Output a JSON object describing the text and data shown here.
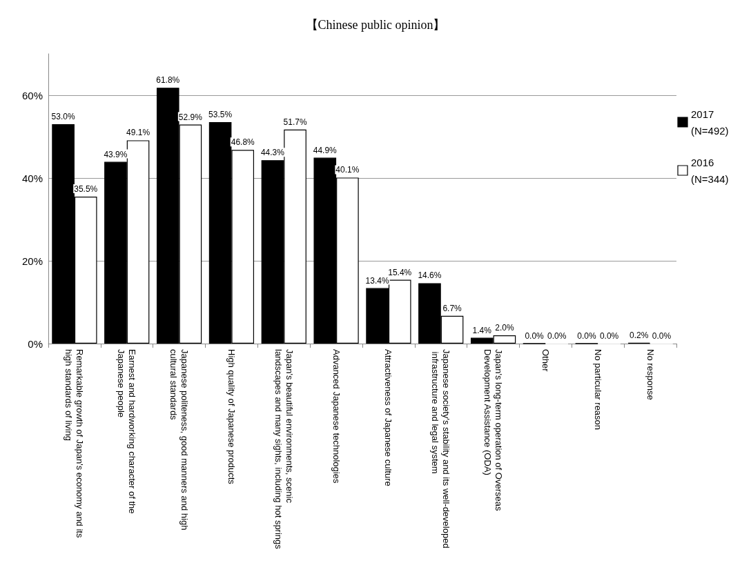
{
  "chart_data": {
    "type": "bar",
    "title": "【Chinese public opinion】",
    "categories": [
      "Remarkable growth of Japan's economy and its high standards of living",
      "Earnest and hardworking character of the Japanese people",
      "Japanese politeness, good manners and high cultural standards",
      "High quality of Japanese products",
      "Japan's beautiful environments, scenic landscapes and many sights, including hot springs",
      "Advanced Japanese technologies",
      "Attractiveness of Japanese culture",
      "Japanese society's stability and its well-developed infrastructure and legal system",
      "Japan's long-term operation of Overseas Development Assistance (ODA)",
      "Other",
      "No particular reason",
      "No response"
    ],
    "series": [
      {
        "name": "2017 (N=492)",
        "color": "#000000",
        "values": [
          53.0,
          43.9,
          61.8,
          53.5,
          44.3,
          44.9,
          13.4,
          14.6,
          1.4,
          0.0,
          0.0,
          0.2
        ],
        "value_labels": [
          "53.0%",
          "43.9%",
          "61.8%",
          "53.5%",
          "44.3%",
          "44.9%",
          "13.4%",
          "14.6%",
          "1.4%",
          "0.0%",
          "0.0%",
          "0.2%"
        ]
      },
      {
        "name": "2016 (N=344)",
        "color": "#ffffff",
        "values": [
          35.5,
          49.1,
          52.9,
          46.8,
          51.7,
          40.1,
          15.4,
          6.7,
          2.0,
          0.0,
          0.0,
          0.0
        ],
        "value_labels": [
          "35.5%",
          "49.1%",
          "52.9%",
          "46.8%",
          "51.7%",
          "40.1%",
          "15.4%",
          "6.7%",
          "2.0%",
          "0.0%",
          "0.0%",
          "0.0%"
        ]
      }
    ],
    "ylim": [
      0,
      70
    ],
    "yticks": [
      {
        "value": 0,
        "label": "0%"
      },
      {
        "value": 20,
        "label": "20%"
      },
      {
        "value": 40,
        "label": "40%"
      },
      {
        "value": 60,
        "label": "60%"
      }
    ],
    "grid": "y",
    "legend": "right"
  }
}
